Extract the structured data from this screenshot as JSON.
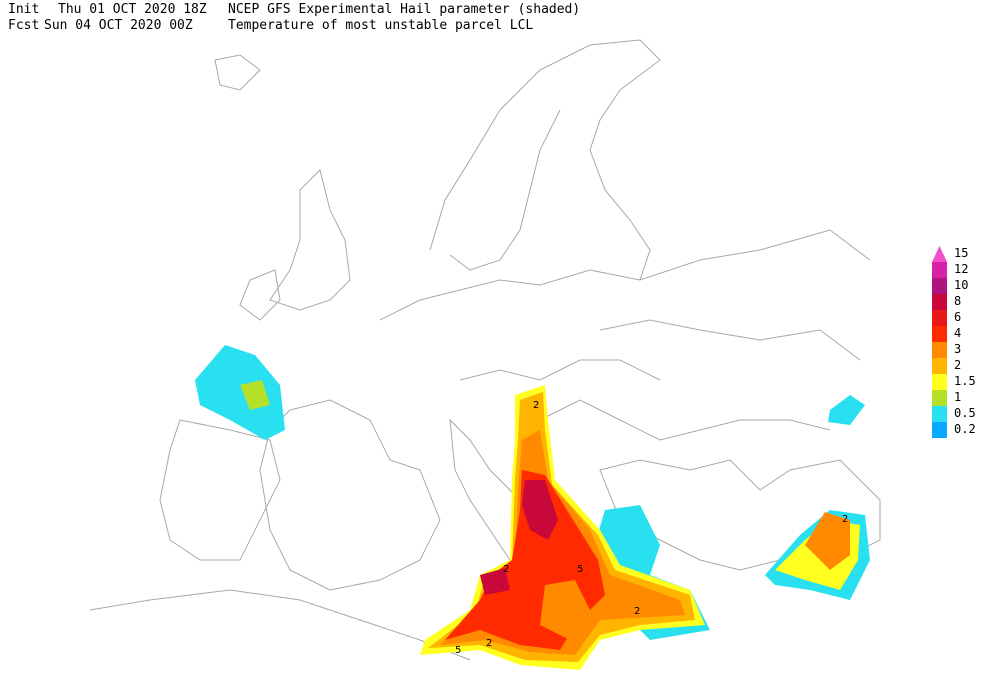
{
  "header": {
    "init_label": "Init",
    "init_time": "Thu 01 OCT 2020 18Z",
    "title": "NCEP GFS Experimental Hail parameter (shaded)",
    "fcst_label": "Fcst",
    "fcst_time": "Sun 04 OCT 2020 00Z",
    "subtitle": "Temperature of most unstable parcel LCL"
  },
  "legend": [
    {
      "label": "15",
      "color": "#f050c8"
    },
    {
      "label": "12",
      "color": "#d820a8"
    },
    {
      "label": "10",
      "color": "#b01480"
    },
    {
      "label": "8",
      "color": "#c80838"
    },
    {
      "label": "6",
      "color": "#e81818"
    },
    {
      "label": "4",
      "color": "#ff2a00"
    },
    {
      "label": "3",
      "color": "#ff8a00"
    },
    {
      "label": "2",
      "color": "#ffb400"
    },
    {
      "label": "1.5",
      "color": "#ffff20"
    },
    {
      "label": "1",
      "color": "#b4e028"
    },
    {
      "label": "0.5",
      "color": "#28e0f0"
    },
    {
      "label": "0.2",
      "color": "#08a8ff"
    }
  ],
  "map": {
    "contour_labels": [
      "2",
      "2",
      "5",
      "5",
      "2",
      "2",
      "2"
    ]
  }
}
